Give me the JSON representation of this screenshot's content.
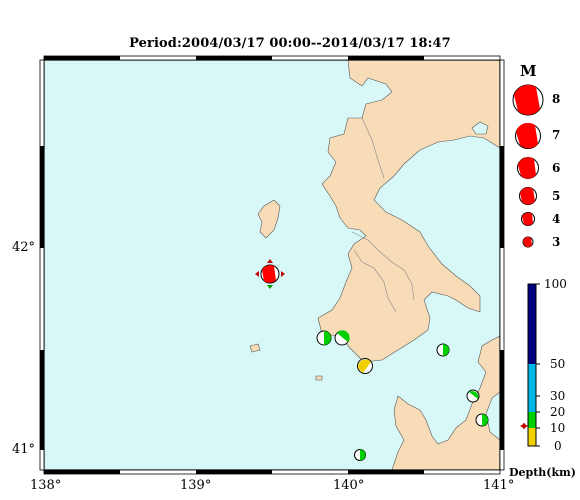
{
  "title": "Period:2004/03/17 00:00--2014/03/17 18:47",
  "axes": {
    "x_ticks": [
      "138°",
      "139°",
      "140°",
      "141°"
    ],
    "y_ticks": [
      "42°",
      "41°"
    ]
  },
  "magnitude_legend": {
    "title": "M",
    "items": [
      "8",
      "7",
      "6",
      "5",
      "4",
      "3"
    ]
  },
  "depth_scale": {
    "label": "Depth(km)",
    "ticks": [
      "100",
      "50",
      "30",
      "20",
      "10",
      "0"
    ],
    "colors": [
      "#f0d000",
      "#00d000",
      "#00b8e8",
      "#000080"
    ]
  },
  "colors": {
    "sea": "#d8f8f8",
    "land": "#f8dcb8",
    "mechanism": "#ff0000"
  }
}
